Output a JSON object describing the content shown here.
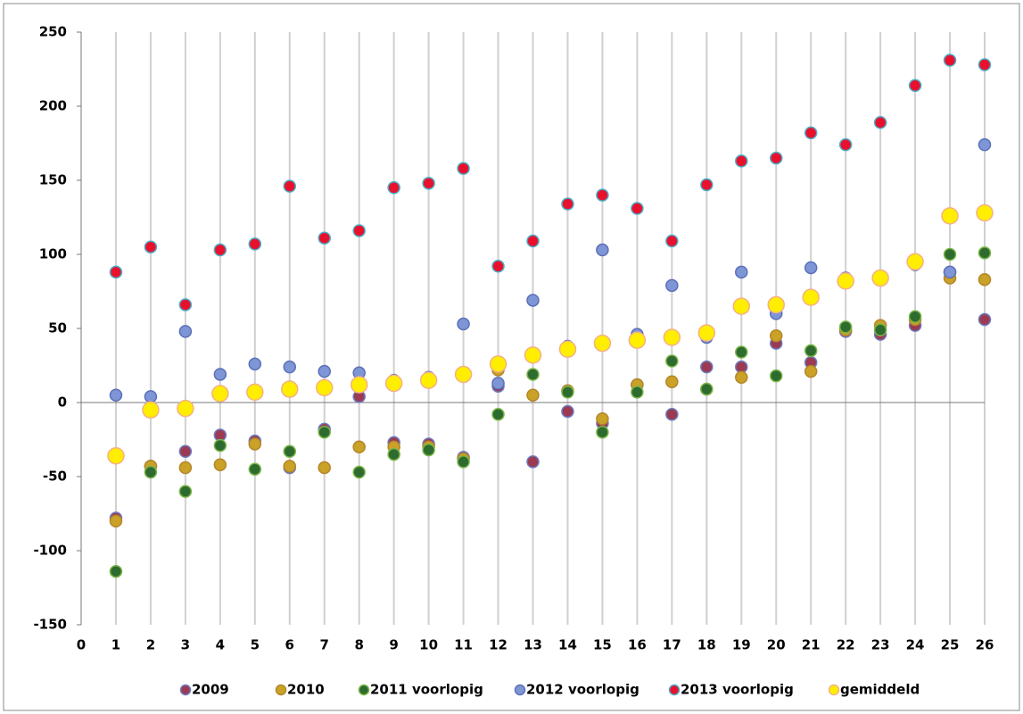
{
  "chart_data": {
    "type": "scatter",
    "x": [
      1,
      2,
      3,
      4,
      5,
      6,
      7,
      8,
      9,
      10,
      11,
      12,
      13,
      14,
      15,
      16,
      17,
      18,
      19,
      20,
      21,
      22,
      23,
      24,
      25,
      26
    ],
    "xlim": [
      0,
      26
    ],
    "xticks": [
      0,
      1,
      2,
      3,
      4,
      5,
      6,
      7,
      8,
      9,
      10,
      11,
      12,
      13,
      14,
      15,
      16,
      17,
      18,
      19,
      20,
      21,
      22,
      23,
      24,
      25,
      26
    ],
    "ylim": [
      -150,
      250
    ],
    "yticks": [
      -150,
      -100,
      -50,
      0,
      50,
      100,
      150,
      200,
      250
    ],
    "grid": "x",
    "legend": "bottom",
    "series": [
      {
        "name": "2009",
        "color": "#9b3a52",
        "edgecolor": "#6b7cc0",
        "values": [
          -78,
          -43,
          -33,
          -22,
          -26,
          -44,
          -18,
          4,
          -27,
          -28,
          -37,
          11,
          -40,
          -6,
          -14,
          12,
          -8,
          24,
          24,
          40,
          27,
          48,
          46,
          52,
          88,
          56
        ]
      },
      {
        "name": "2010",
        "color": "#c9a227",
        "edgecolor": "#b5852a",
        "values": [
          -80,
          -43,
          -44,
          -42,
          -28,
          -43,
          -44,
          -30,
          -30,
          -30,
          -38,
          22,
          5,
          8,
          -11,
          12,
          14,
          9,
          17,
          45,
          21,
          49,
          52,
          56,
          84,
          83
        ]
      },
      {
        "name": "2011 voorlopig",
        "color": "#2e6b2e",
        "edgecolor": "#7ab648",
        "values": [
          -114,
          -47,
          -60,
          -29,
          -45,
          -33,
          -20,
          -47,
          -35,
          -32,
          -40,
          -8,
          19,
          7,
          -20,
          7,
          28,
          9,
          34,
          18,
          35,
          51,
          49,
          58,
          100,
          101
        ]
      },
      {
        "name": "2012 voorlopig",
        "color": "#7f96d6",
        "edgecolor": "#5b70b8",
        "values": [
          5,
          4,
          48,
          19,
          26,
          24,
          21,
          20,
          15,
          17,
          53,
          13,
          69,
          38,
          103,
          46,
          79,
          44,
          88,
          60,
          91,
          84,
          84,
          93,
          88,
          174
        ]
      },
      {
        "name": "2013 voorlopig",
        "color": "#e8112d",
        "edgecolor": "#4bacc6",
        "values": [
          88,
          105,
          66,
          103,
          107,
          146,
          111,
          116,
          145,
          148,
          158,
          92,
          109,
          134,
          140,
          131,
          109,
          147,
          163,
          165,
          182,
          174,
          189,
          214,
          231,
          228
        ]
      },
      {
        "name": "gemiddeld",
        "color": "#ffee00",
        "edgecolor": "#f4b183",
        "values": [
          -36,
          -5,
          -4,
          6,
          7,
          9,
          10,
          12,
          13,
          15,
          19,
          26,
          32,
          36,
          40,
          42,
          44,
          47,
          65,
          66,
          71,
          82,
          84,
          95,
          126,
          128
        ]
      }
    ]
  }
}
